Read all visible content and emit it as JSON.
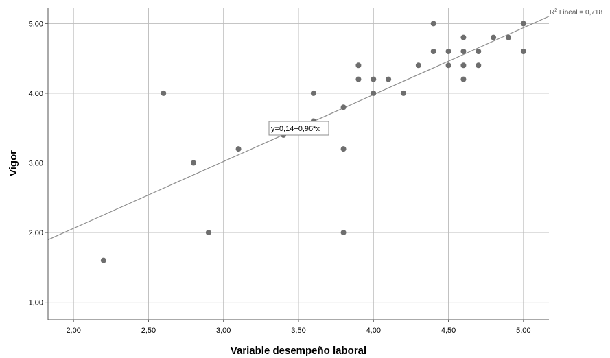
{
  "chart_data": {
    "type": "scatter",
    "xlabel": "Variable desempeño laboral",
    "ylabel": "Vigor",
    "xlim": [
      1.83,
      5.17
    ],
    "ylim": [
      0.75,
      5.23
    ],
    "x_ticks": [
      "2,00",
      "2,50",
      "3,00",
      "3,50",
      "4,00",
      "4,50",
      "5,00"
    ],
    "x_tick_values": [
      2.0,
      2.5,
      3.0,
      3.5,
      4.0,
      4.5,
      5.0
    ],
    "y_ticks": [
      "1,00",
      "2,00",
      "3,00",
      "4,00",
      "5,00"
    ],
    "y_tick_values": [
      1.0,
      2.0,
      3.0,
      4.0,
      5.0
    ],
    "grid": true,
    "points": [
      {
        "x": 2.2,
        "y": 1.6
      },
      {
        "x": 2.6,
        "y": 4.0
      },
      {
        "x": 2.8,
        "y": 3.0
      },
      {
        "x": 2.9,
        "y": 2.0
      },
      {
        "x": 3.1,
        "y": 3.2
      },
      {
        "x": 3.4,
        "y": 3.4
      },
      {
        "x": 3.6,
        "y": 3.6
      },
      {
        "x": 3.6,
        "y": 4.0
      },
      {
        "x": 3.8,
        "y": 3.8
      },
      {
        "x": 3.8,
        "y": 3.2
      },
      {
        "x": 3.8,
        "y": 2.0
      },
      {
        "x": 3.9,
        "y": 4.4
      },
      {
        "x": 3.9,
        "y": 4.2
      },
      {
        "x": 4.0,
        "y": 4.2
      },
      {
        "x": 4.0,
        "y": 4.0
      },
      {
        "x": 4.1,
        "y": 4.2
      },
      {
        "x": 4.2,
        "y": 4.0
      },
      {
        "x": 4.3,
        "y": 4.4
      },
      {
        "x": 4.4,
        "y": 5.0
      },
      {
        "x": 4.4,
        "y": 4.6
      },
      {
        "x": 4.5,
        "y": 4.6
      },
      {
        "x": 4.5,
        "y": 4.4
      },
      {
        "x": 4.6,
        "y": 4.8
      },
      {
        "x": 4.6,
        "y": 4.6
      },
      {
        "x": 4.6,
        "y": 4.4
      },
      {
        "x": 4.6,
        "y": 4.2
      },
      {
        "x": 4.7,
        "y": 4.6
      },
      {
        "x": 4.7,
        "y": 4.4
      },
      {
        "x": 4.8,
        "y": 4.8
      },
      {
        "x": 4.9,
        "y": 4.8
      },
      {
        "x": 5.0,
        "y": 5.0
      },
      {
        "x": 5.0,
        "y": 4.6
      }
    ],
    "fit_line": {
      "intercept": 0.14,
      "slope": 0.96
    },
    "equation_label": "y=0,14+0,96*x",
    "r2_prefix": "R",
    "r2_sup": "2",
    "r2_text": " Lineal = 0,718",
    "colors": {
      "points": "#6e6e6e",
      "line": "#8c8c8c",
      "grid": "#bdbdbd",
      "axis": "#555555"
    }
  }
}
